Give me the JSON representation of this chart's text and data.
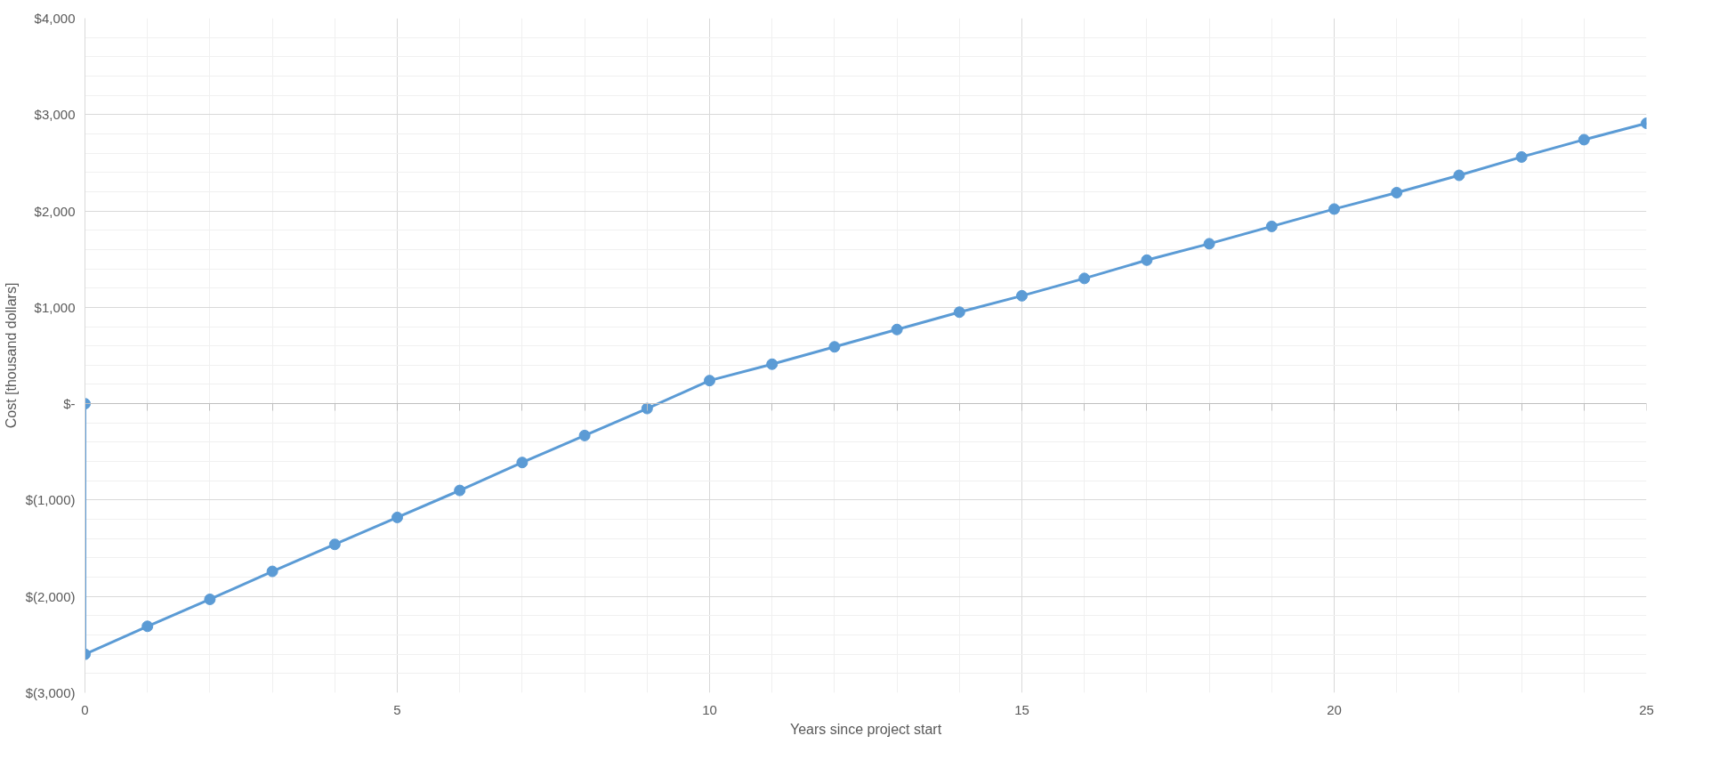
{
  "chart_data": {
    "type": "line",
    "xlabel": "Years since project start",
    "ylabel": "Cost [thousand dollars]",
    "x": [
      0,
      0,
      1,
      2,
      3,
      4,
      5,
      6,
      7,
      8,
      9,
      10,
      11,
      12,
      13,
      14,
      15,
      16,
      17,
      18,
      19,
      20,
      21,
      22,
      23,
      24,
      25
    ],
    "series": [
      {
        "color": "#5b9bd5",
        "values": [
          0,
          -2600,
          -2310,
          -2030,
          -1740,
          -1460,
          -1180,
          -900,
          -610,
          -330,
          -50,
          240,
          410,
          590,
          770,
          950,
          1120,
          1300,
          1490,
          1660,
          1840,
          2020,
          2190,
          2370,
          2560,
          2740,
          2910
        ]
      }
    ],
    "xlim": [
      0,
      25
    ],
    "xticks": [
      0,
      5,
      10,
      15,
      20,
      25
    ],
    "ylim": [
      -3000,
      4000
    ],
    "yticks": [
      {
        "value": -3000,
        "label": "$(3,000)"
      },
      {
        "value": -2000,
        "label": "$(2,000)"
      },
      {
        "value": -1000,
        "label": "$(1,000)"
      },
      {
        "value": 0,
        "label": "$-"
      },
      {
        "value": 1000,
        "label": "$1,000"
      },
      {
        "value": 2000,
        "label": "$2,000"
      },
      {
        "value": 3000,
        "label": "$3,000"
      },
      {
        "value": 4000,
        "label": "$4,000"
      }
    ],
    "grid": true,
    "marker": "circle",
    "line_style": "solid"
  }
}
